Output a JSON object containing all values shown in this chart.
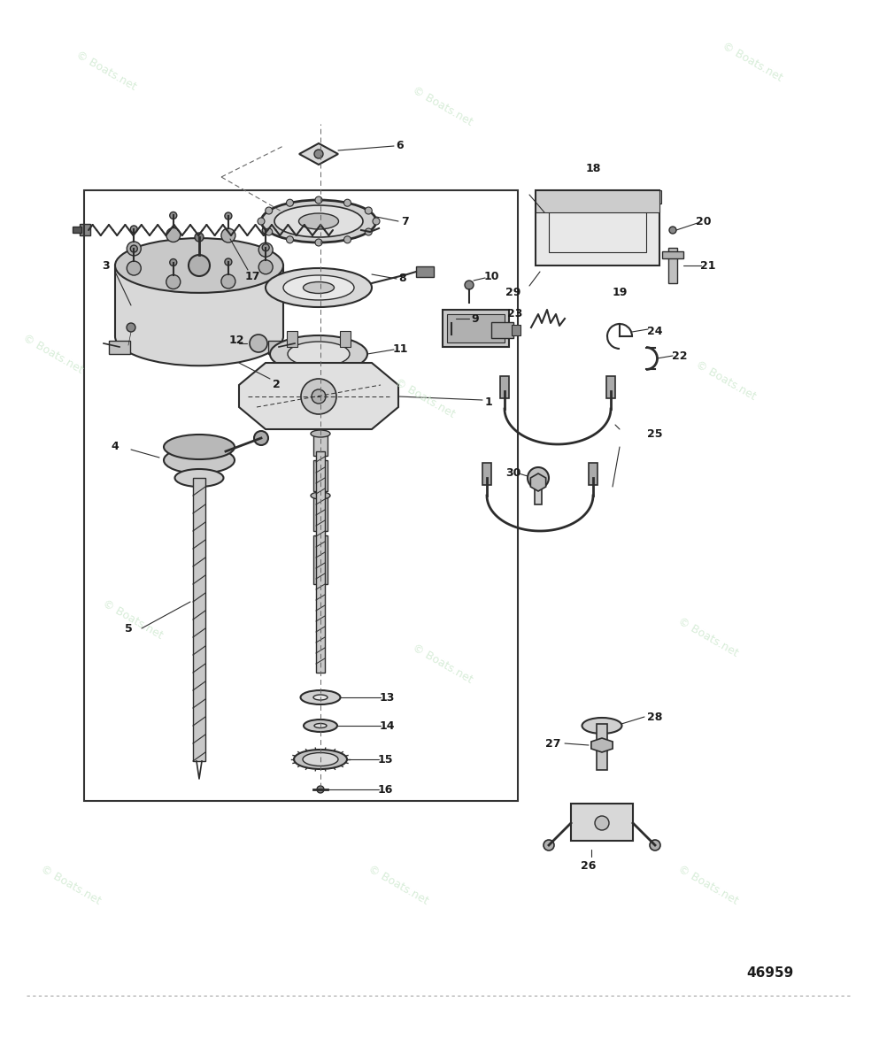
{
  "background_color": "#ffffff",
  "watermark_color": "#c8e6c9",
  "watermark_text": "© Boats.net",
  "figure_number": "46959",
  "line_color": "#2c2c2c",
  "border_color": "#333333",
  "label_fontsize": 9
}
